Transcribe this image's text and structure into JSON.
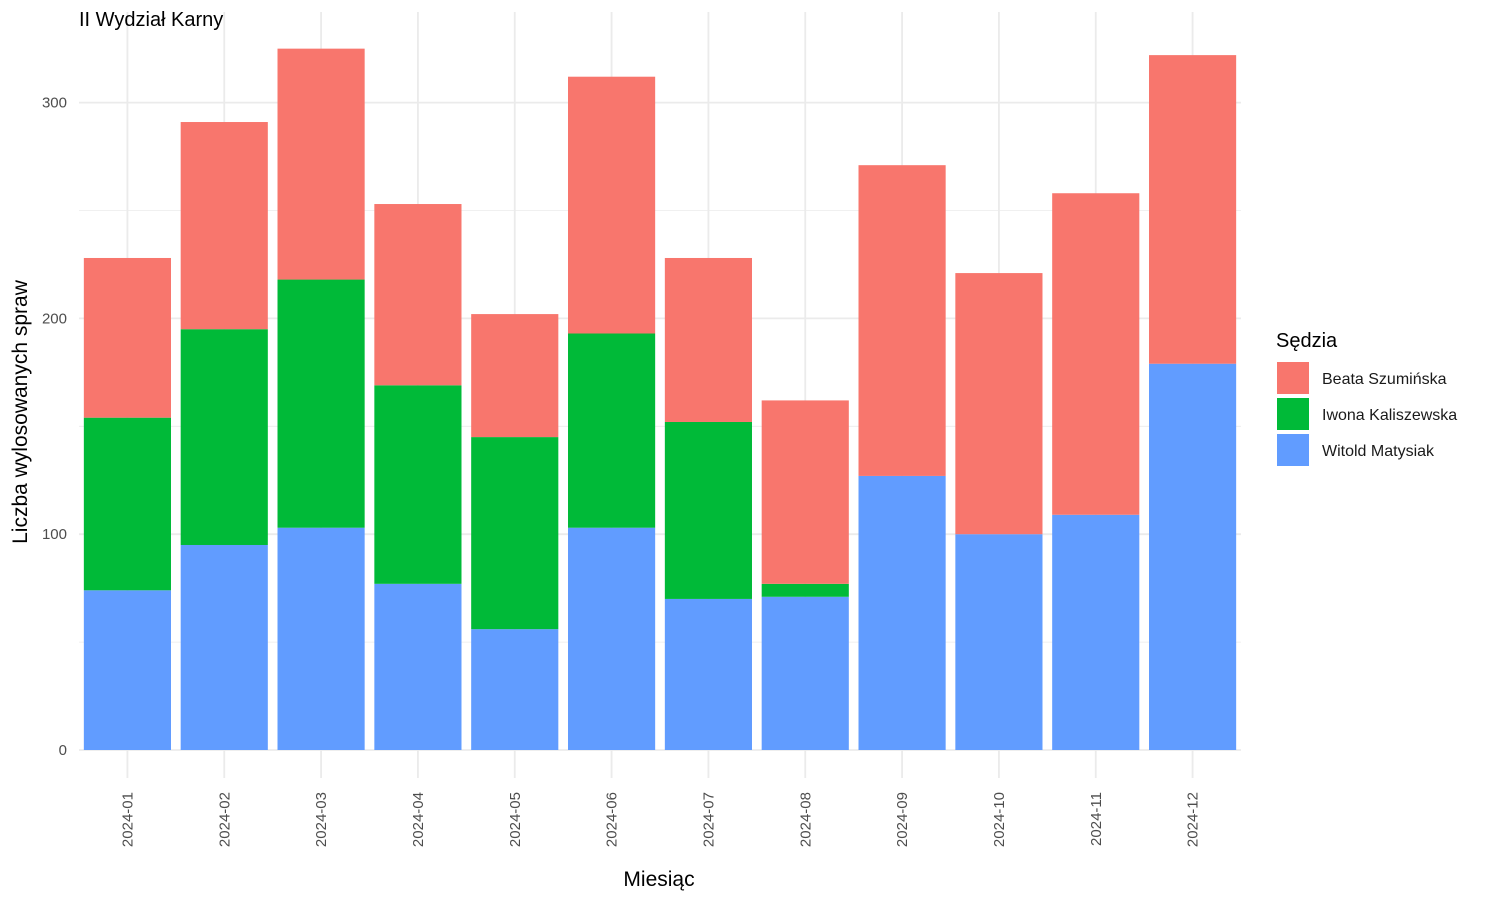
{
  "chart_data": {
    "type": "bar",
    "stacked": true,
    "title": "II Wydział Karny",
    "xlabel": "Miesiąc",
    "ylabel": "Liczba wylosowanych spraw",
    "ylim": [
      0,
      330
    ],
    "yticks": [
      0,
      100,
      200,
      300
    ],
    "grid": true,
    "legend_title": "Sędzia",
    "legend_position": "right",
    "categories": [
      "2024-01",
      "2024-02",
      "2024-03",
      "2024-04",
      "2024-05",
      "2024-06",
      "2024-07",
      "2024-08",
      "2024-09",
      "2024-10",
      "2024-11",
      "2024-12"
    ],
    "series": [
      {
        "name": "Witold Matysiak",
        "color": "#619CFF",
        "values": [
          74,
          95,
          103,
          77,
          56,
          103,
          70,
          71,
          127,
          100,
          109,
          179
        ]
      },
      {
        "name": "Iwona Kaliszewska",
        "color": "#00BA38",
        "values": [
          80,
          100,
          115,
          92,
          89,
          90,
          82,
          6,
          0,
          0,
          0,
          0
        ]
      },
      {
        "name": "Beata Szumińska",
        "color": "#F8766D",
        "values": [
          74,
          96,
          107,
          84,
          57,
          119,
          76,
          85,
          144,
          121,
          149,
          143
        ]
      }
    ],
    "legend_order": [
      "Beata Szumińska",
      "Iwona Kaliszewska",
      "Witold Matysiak"
    ]
  }
}
